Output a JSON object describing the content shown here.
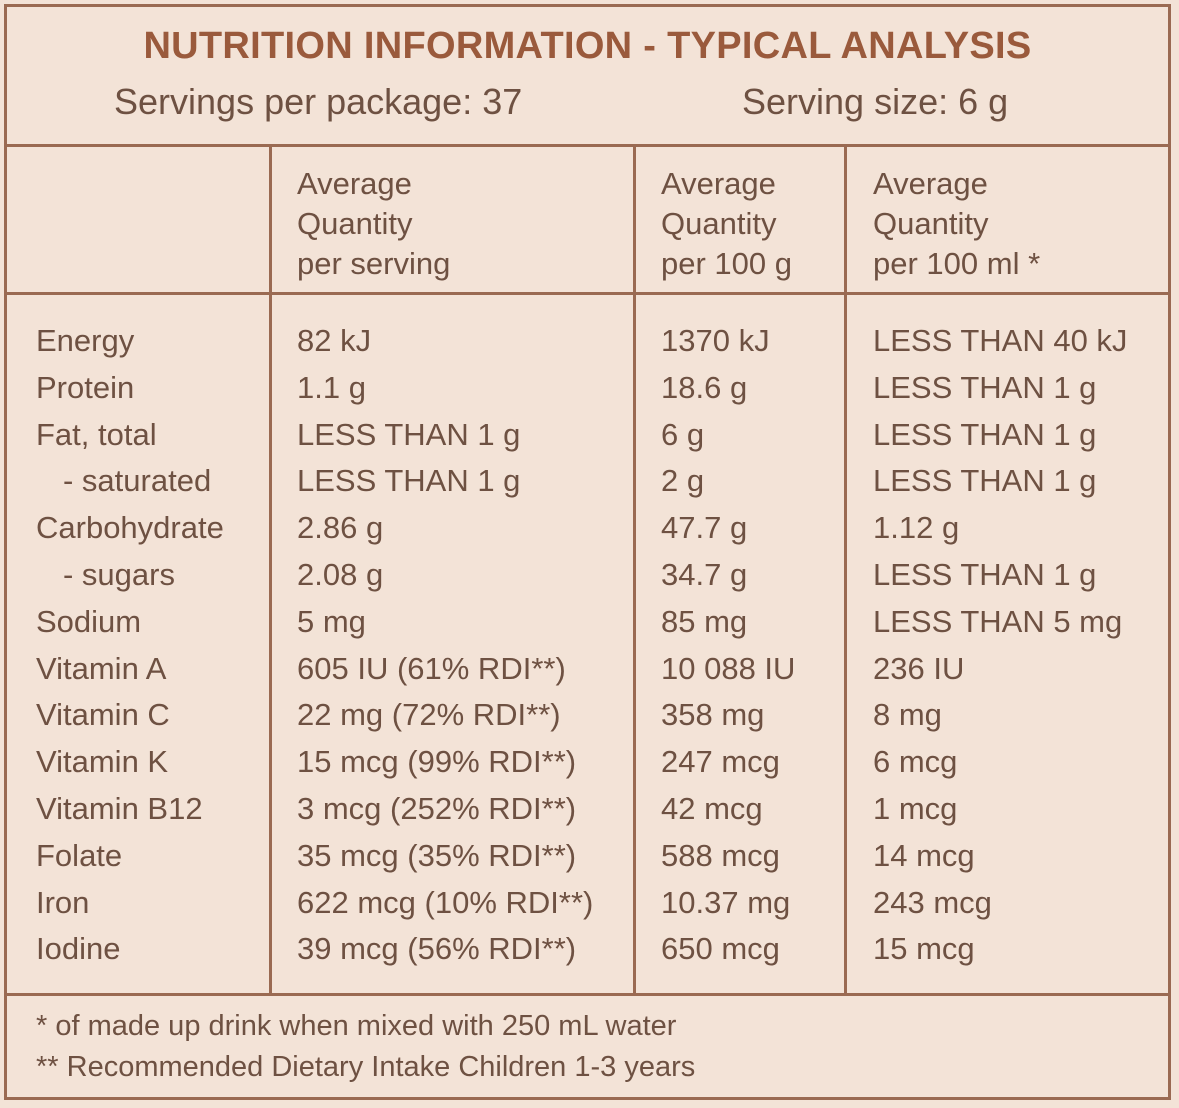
{
  "header": {
    "title": "NUTRITION INFORMATION - TYPICAL ANALYSIS",
    "servings_per_package": "Servings per package: 37",
    "serving_size": "Serving size: 6 g"
  },
  "columns": [
    "",
    [
      "Average",
      "Quantity",
      "per serving"
    ],
    [
      "Average",
      "Quantity",
      "per 100 g"
    ],
    [
      "Average",
      "Quantity",
      "per 100 ml *"
    ]
  ],
  "rows": [
    {
      "name": "Energy",
      "per_serving": "82 kJ",
      "per_100g": "1370 kJ",
      "per_100ml": "LESS THAN 40 kJ"
    },
    {
      "name": "Protein",
      "per_serving": "1.1 g",
      "per_100g": "18.6 g",
      "per_100ml": "LESS THAN 1 g"
    },
    {
      "name": "Fat, total",
      "per_serving": "LESS THAN 1 g",
      "per_100g": "6 g",
      "per_100ml": "LESS THAN 1 g"
    },
    {
      "name": "- saturated",
      "per_serving": "LESS THAN 1 g",
      "per_100g": "2 g",
      "per_100ml": "LESS THAN 1 g"
    },
    {
      "name": "Carbohydrate",
      "per_serving": "2.86 g",
      "per_100g": "47.7 g",
      "per_100ml": "1.12 g"
    },
    {
      "name": "- sugars",
      "per_serving": "2.08 g",
      "per_100g": "34.7 g",
      "per_100ml": "LESS THAN 1 g"
    },
    {
      "name": "Sodium",
      "per_serving": "5 mg",
      "per_100g": "85 mg",
      "per_100ml": "LESS THAN 5 mg"
    },
    {
      "name": "Vitamin A",
      "per_serving": "605 IU (61% RDI**)",
      "per_100g": "10 088 IU",
      "per_100ml": "236 IU"
    },
    {
      "name": "Vitamin C",
      "per_serving": "22 mg (72% RDI**)",
      "per_100g": "358 mg",
      "per_100ml": "8 mg"
    },
    {
      "name": "Vitamin K",
      "per_serving": "15 mcg (99% RDI**)",
      "per_100g": "247 mcg",
      "per_100ml": "6 mcg"
    },
    {
      "name": "Vitamin B12",
      "per_serving": "3 mcg (252% RDI**)",
      "per_100g": "42 mcg",
      "per_100ml": "1 mcg"
    },
    {
      "name": "Folate",
      "per_serving": "35 mcg (35% RDI**)",
      "per_100g": "588 mcg",
      "per_100ml": "14 mcg"
    },
    {
      "name": "Iron",
      "per_serving": "622 mcg (10% RDI**)",
      "per_100g": "10.37 mg",
      "per_100ml": "243 mcg"
    },
    {
      "name": "Iodine",
      "per_serving": "39 mcg (56% RDI**)",
      "per_100g": "650 mcg",
      "per_100ml": "15 mcg"
    }
  ],
  "footnotes": [
    "* of made up drink when mixed with 250 mL water",
    "** Recommended Dietary Intake Children 1-3 years"
  ],
  "colors": {
    "background": "#f3e3d7",
    "border": "#9a6a52",
    "title": "#9a5a3c",
    "text": "#6e5142"
  }
}
